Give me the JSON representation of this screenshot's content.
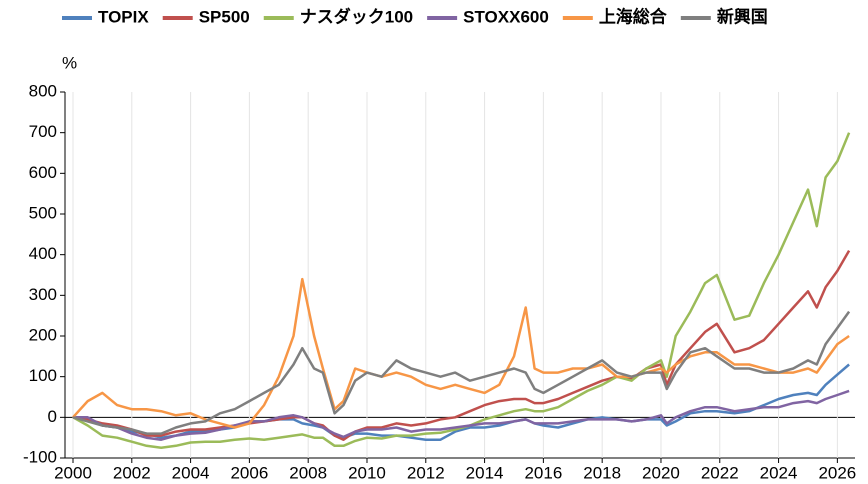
{
  "chart_data": {
    "type": "line",
    "y_label": "%",
    "x": [
      2000,
      2000.5,
      2001,
      2001.5,
      2002,
      2002.5,
      2003,
      2003.5,
      2004,
      2004.5,
      2005,
      2005.5,
      2006,
      2006.5,
      2007,
      2007.5,
      2007.8,
      2008.2,
      2008.5,
      2008.9,
      2009.2,
      2009.6,
      2010,
      2010.5,
      2011,
      2011.5,
      2012,
      2012.5,
      2013,
      2013.5,
      2014,
      2014.5,
      2015,
      2015.4,
      2015.7,
      2016,
      2016.5,
      2017,
      2017.5,
      2018,
      2018.5,
      2019,
      2019.5,
      2020,
      2020.2,
      2020.5,
      2021,
      2021.5,
      2021.9,
      2022.5,
      2023,
      2023.5,
      2024,
      2024.5,
      2025,
      2025.3,
      2025.6,
      2026,
      2026.4
    ],
    "series": [
      {
        "name": "TOPIX",
        "color": "#4f81bd",
        "values": [
          0,
          -5,
          -20,
          -25,
          -35,
          -40,
          -50,
          -45,
          -35,
          -35,
          -30,
          -25,
          -10,
          -10,
          -5,
          -5,
          -15,
          -20,
          -25,
          -45,
          -50,
          -40,
          -40,
          -45,
          -45,
          -50,
          -55,
          -55,
          -35,
          -25,
          -25,
          -20,
          -10,
          -5,
          -15,
          -20,
          -25,
          -15,
          -5,
          0,
          -5,
          -10,
          -5,
          -5,
          -20,
          -10,
          10,
          15,
          15,
          10,
          15,
          30,
          45,
          55,
          60,
          55,
          80,
          105,
          130
        ]
      },
      {
        "name": "SP500",
        "color": "#c0504d",
        "values": [
          0,
          -5,
          -15,
          -20,
          -30,
          -45,
          -45,
          -35,
          -30,
          -30,
          -25,
          -20,
          -15,
          -10,
          -5,
          0,
          0,
          -15,
          -20,
          -45,
          -55,
          -35,
          -25,
          -25,
          -15,
          -20,
          -15,
          -5,
          0,
          15,
          30,
          40,
          45,
          45,
          35,
          35,
          45,
          60,
          75,
          90,
          100,
          95,
          120,
          130,
          80,
          130,
          170,
          210,
          230,
          160,
          170,
          190,
          230,
          270,
          310,
          270,
          320,
          360,
          410
        ]
      },
      {
        "name": "ナスダック100",
        "color": "#9bbb59",
        "values": [
          0,
          -20,
          -45,
          -50,
          -60,
          -70,
          -75,
          -70,
          -62,
          -60,
          -60,
          -55,
          -52,
          -55,
          -50,
          -45,
          -42,
          -50,
          -50,
          -70,
          -70,
          -58,
          -50,
          -52,
          -45,
          -45,
          -40,
          -38,
          -30,
          -20,
          -5,
          5,
          15,
          20,
          15,
          15,
          25,
          45,
          65,
          80,
          100,
          90,
          120,
          140,
          100,
          200,
          260,
          330,
          350,
          240,
          250,
          330,
          400,
          480,
          560,
          470,
          590,
          630,
          700
        ]
      },
      {
        "name": "STOXX600",
        "color": "#8064a2",
        "values": [
          0,
          0,
          -20,
          -25,
          -40,
          -50,
          -55,
          -45,
          -40,
          -38,
          -30,
          -20,
          -10,
          -10,
          0,
          5,
          0,
          -15,
          -25,
          -40,
          -48,
          -35,
          -30,
          -30,
          -25,
          -35,
          -30,
          -30,
          -25,
          -20,
          -15,
          -15,
          -10,
          -5,
          -15,
          -15,
          -15,
          -10,
          -5,
          -5,
          -5,
          -10,
          -5,
          5,
          -15,
          0,
          15,
          25,
          25,
          15,
          20,
          25,
          25,
          35,
          40,
          35,
          45,
          55,
          65
        ]
      },
      {
        "name": "上海総合",
        "color": "#f79646",
        "values": [
          0,
          40,
          60,
          30,
          20,
          20,
          15,
          5,
          10,
          -5,
          -15,
          -25,
          -15,
          30,
          100,
          200,
          340,
          200,
          120,
          20,
          40,
          120,
          110,
          100,
          110,
          100,
          80,
          70,
          80,
          70,
          60,
          80,
          150,
          270,
          120,
          110,
          110,
          120,
          120,
          130,
          100,
          100,
          110,
          120,
          110,
          130,
          150,
          160,
          160,
          130,
          130,
          120,
          110,
          110,
          120,
          110,
          140,
          180,
          200
        ]
      },
      {
        "name": "新興国",
        "color": "#7f7f7f",
        "values": [
          0,
          -10,
          -20,
          -25,
          -30,
          -40,
          -40,
          -25,
          -15,
          -10,
          10,
          20,
          40,
          60,
          80,
          130,
          170,
          120,
          110,
          10,
          30,
          90,
          110,
          100,
          140,
          120,
          110,
          100,
          110,
          90,
          100,
          110,
          120,
          110,
          70,
          60,
          80,
          100,
          120,
          140,
          110,
          100,
          110,
          110,
          70,
          110,
          160,
          170,
          150,
          120,
          120,
          110,
          110,
          120,
          140,
          130,
          180,
          220,
          260
        ]
      }
    ],
    "xlim": [
      2000,
      2026.6
    ],
    "xticks": [
      2000,
      2002,
      2004,
      2006,
      2008,
      2010,
      2012,
      2014,
      2016,
      2018,
      2020,
      2022,
      2024,
      2026
    ],
    "ylim": [
      -100,
      800
    ],
    "yticks": [
      -100,
      0,
      100,
      200,
      300,
      400,
      500,
      600,
      700,
      800
    ],
    "grid": "x",
    "legend": "top"
  }
}
